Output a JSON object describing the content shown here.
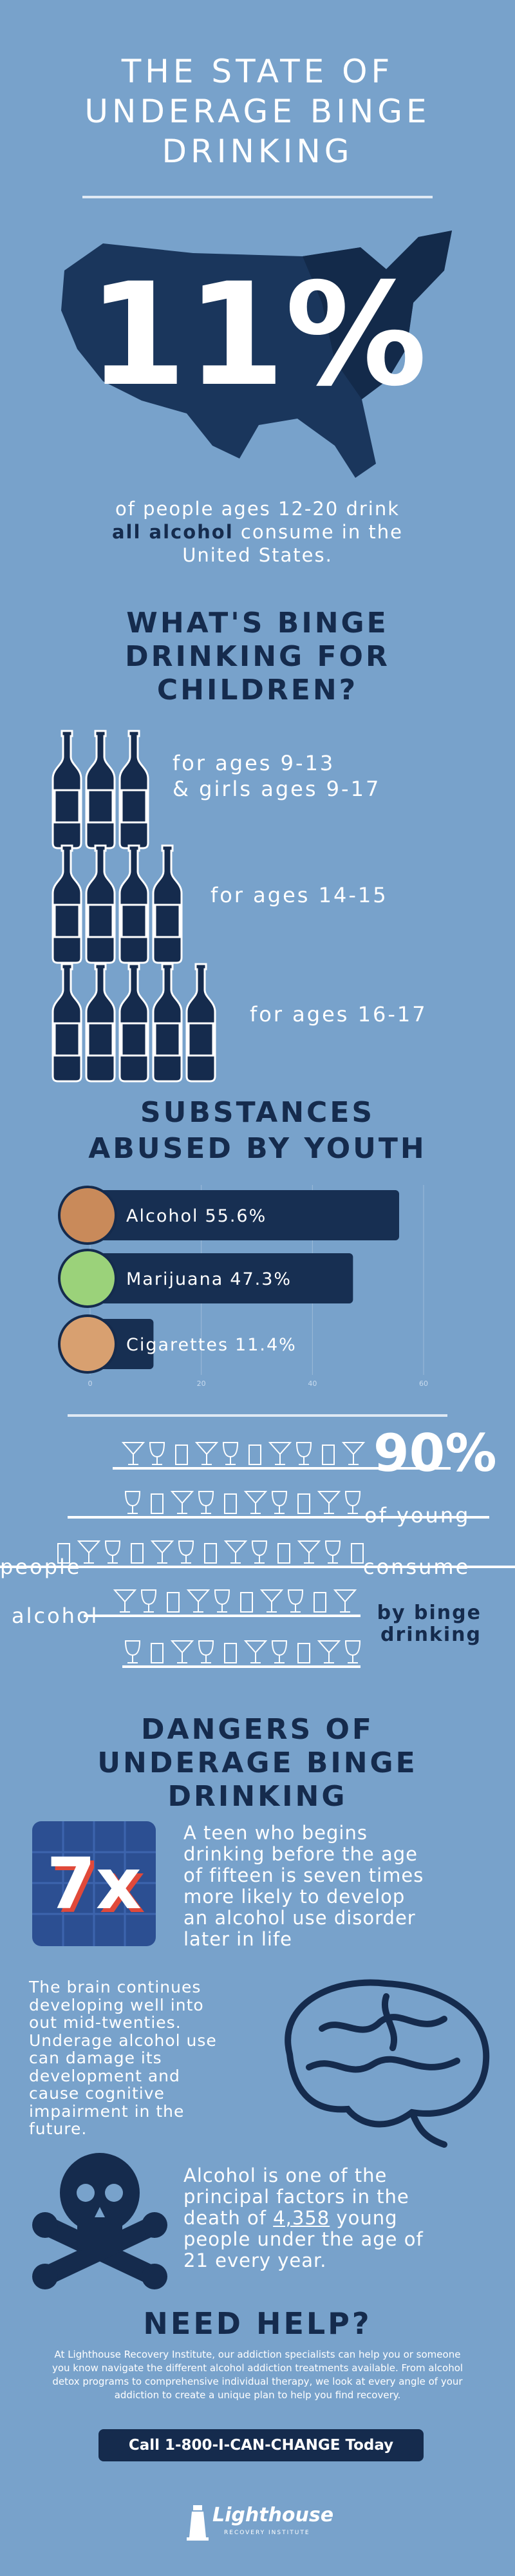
{
  "header": {
    "title_lines": [
      "THE STATE OF",
      "UNDERAGE BINGE",
      "DRINKING"
    ]
  },
  "stat": {
    "figure": "11%",
    "caption_parts": [
      "of people ages 12-20 drink",
      "all alcohol",
      "consume in the",
      "United States."
    ]
  },
  "binge_section": {
    "heading_lines": [
      "WHAT'S BINGE",
      "DRINKING FOR",
      "CHILDREN?"
    ],
    "rows": [
      {
        "lines": [
          "for ages 9-13",
          "& girls ages 9-17"
        ]
      },
      {
        "lines": [
          "for ages 14-15"
        ]
      },
      {
        "lines": [
          "for ages 16-17"
        ]
      }
    ]
  },
  "substances": {
    "heading_lines": [
      "SUBSTANCES",
      "ABUSED BY YOUTH"
    ]
  },
  "chart_data": {
    "type": "bar",
    "orientation": "horizontal",
    "categories": [
      "Alcohol",
      "Marijuana",
      "Cigarettes"
    ],
    "values": [
      55.6,
      47.3,
      11.4
    ],
    "value_labels": [
      "55.6%",
      "47.3%",
      "11.4%"
    ],
    "color": "#172f52",
    "xlim": [
      0,
      60
    ],
    "xticks": [
      0,
      20,
      40,
      60
    ],
    "grid": true
  },
  "ninety": {
    "figure": "90%",
    "words": [
      "of young",
      "people",
      "consume",
      "alcohol"
    ],
    "highlight_lines": [
      "by binge",
      "drinking"
    ]
  },
  "dangers": {
    "heading_lines": [
      "DANGERS OF",
      "UNDERAGE BINGE",
      "DRINKING"
    ],
    "icon_text": "7x",
    "fact1_lines": [
      "A teen who begins",
      "drinking before the age",
      "of fifteen is seven times",
      "more likely to develop",
      "an alcohol use disorder",
      "later in life"
    ],
    "fact2_lines": [
      "The brain continues",
      "developing well into",
      "out mid-twenties.",
      "Underage alcohol use",
      "can damage its",
      "development and",
      "cause cognitive",
      "impairment in the",
      "future."
    ],
    "fact3_lines": [
      "Alcohol is one of the",
      "principal factors in the"
    ],
    "fact3_line3": [
      "death of",
      "4,358",
      "young"
    ],
    "fact3_tail": [
      "people under the age of",
      "21 every year."
    ]
  },
  "help": {
    "heading": "NEED HELP?",
    "paragraph_lines": [
      "At Lighthouse Recovery Institute, our addiction specialists can help you or someone",
      "you know navigate the different alcohol addiction treatments available. From alcohol",
      "detox programs to comprehensive individual therapy, we look at every angle of your",
      "addiction to create a unique plan to help you find recovery."
    ],
    "button": "Call 1-800-I-CAN-CHANGE Today"
  },
  "footer": {
    "logo": "Lighthouse",
    "logo_sub": "RECOVERY INSTITUTE"
  }
}
